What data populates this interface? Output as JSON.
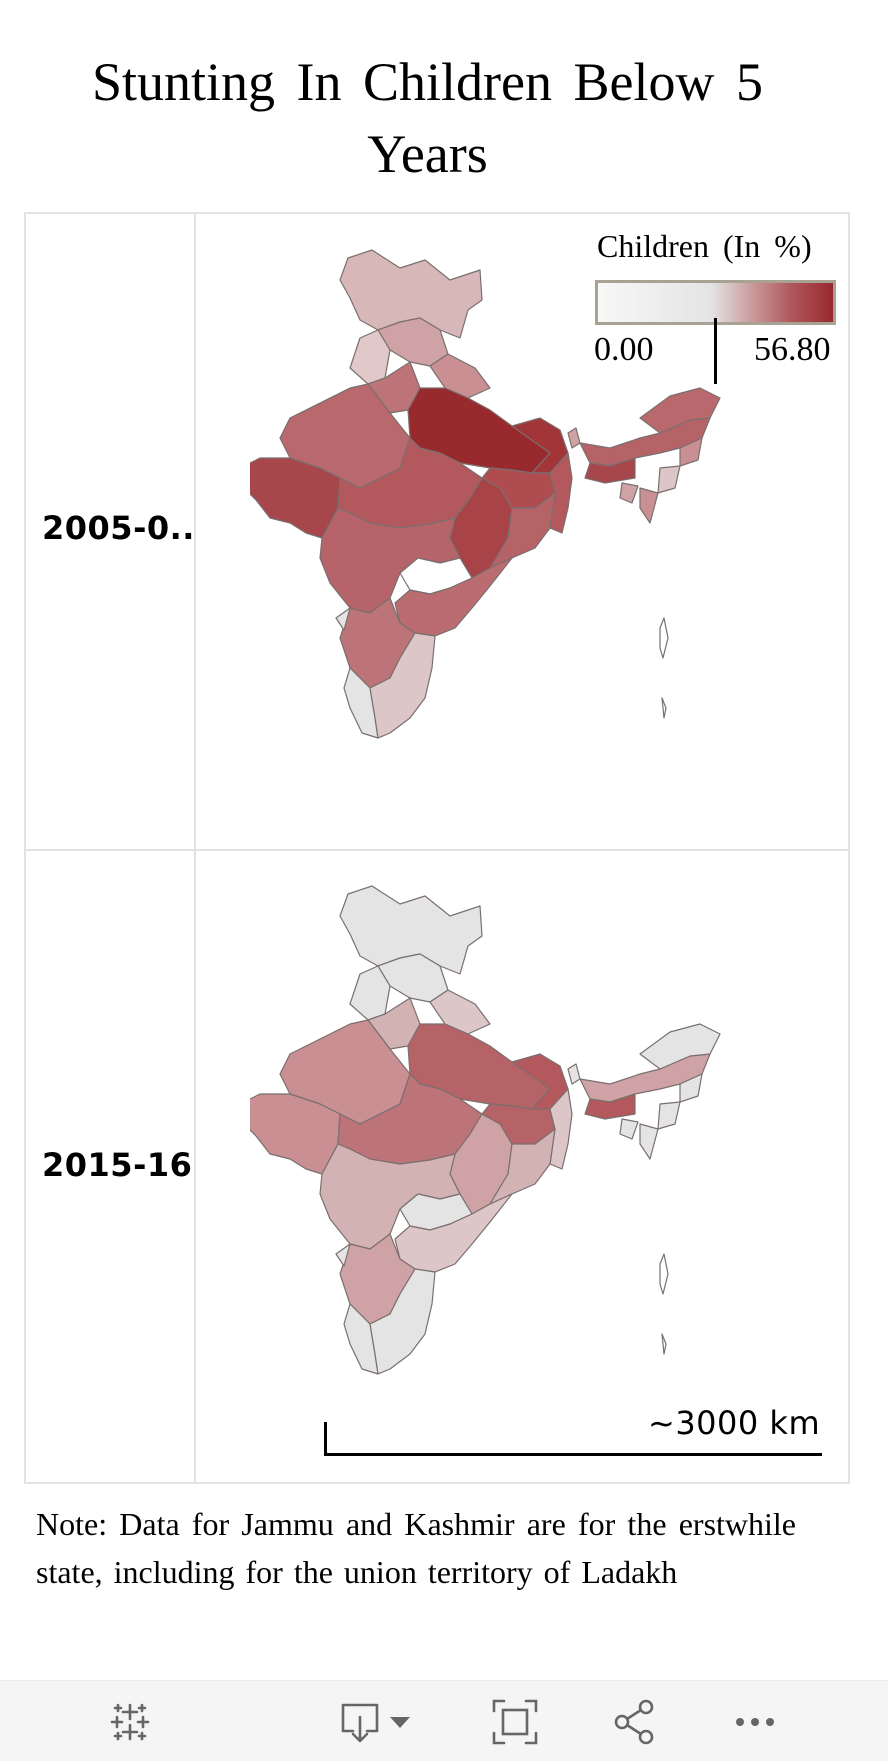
{
  "title": "Stunting In Children Below 5 Years",
  "rows": [
    {
      "label": "2005-0.."
    },
    {
      "label": "2015-16"
    }
  ],
  "legend": {
    "title": "Children (In %)",
    "min": "0.00",
    "max": "56.80",
    "colors": {
      "low": "#e4e4e4",
      "high": "#982a2e",
      "border": "#a8a293"
    }
  },
  "scale": {
    "label": "~3000 km"
  },
  "note": "Note: Data for Jammu and Kashmir are for the erstwhile state, including for the union territory of Ladakh",
  "toolbar": {
    "icons": [
      "tableau-logo-icon",
      "download-icon",
      "chevron-down-icon",
      "fullscreen-icon",
      "share-icon",
      "more-icon"
    ]
  }
}
